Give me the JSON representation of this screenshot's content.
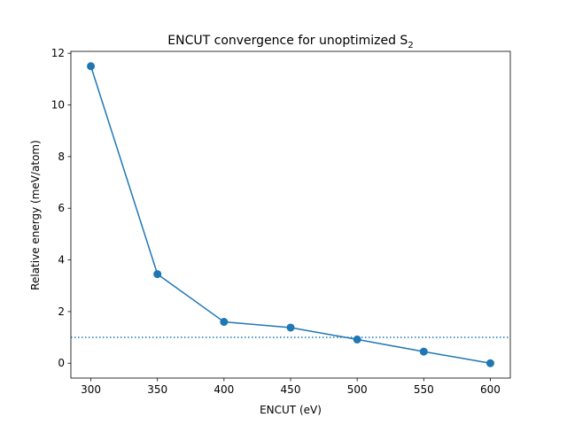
{
  "chart_data": {
    "type": "line",
    "title": "ENCUT convergence for unoptimized S",
    "title_subscript": "2",
    "xlabel": "ENCUT (eV)",
    "ylabel": "Relative energy (meV/atom)",
    "xlim": [
      285,
      615
    ],
    "ylim": [
      -0.575,
      12.075
    ],
    "xticks": [
      300,
      350,
      400,
      450,
      500,
      550,
      600
    ],
    "yticks": [
      0,
      2,
      4,
      6,
      8,
      10,
      12
    ],
    "grid": false,
    "series": [
      {
        "x": [
          300,
          350,
          400,
          450,
          500,
          550,
          600
        ],
        "y": [
          11.5,
          3.45,
          1.6,
          1.38,
          0.92,
          0.45,
          0.0
        ],
        "color": "#1f77b4",
        "marker": "circle",
        "linestyle": "solid"
      }
    ],
    "reference_line": {
      "y": 1.0,
      "color": "#1f77b4",
      "linestyle": "dotted"
    }
  }
}
